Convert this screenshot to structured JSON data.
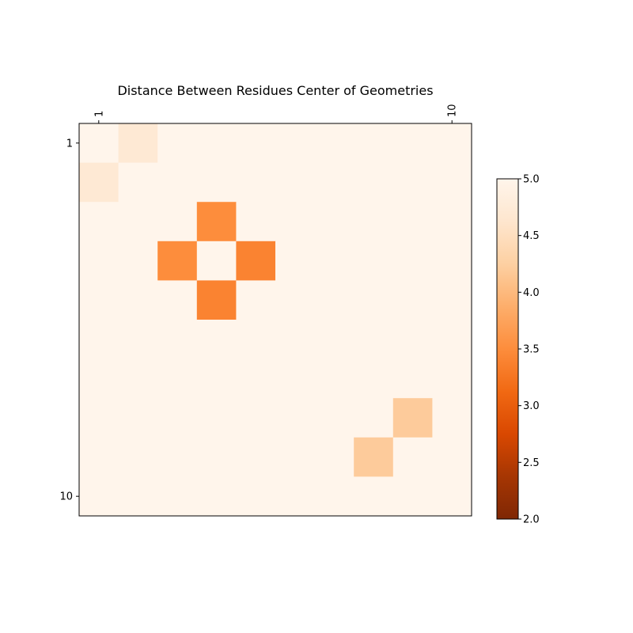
{
  "chart_data": {
    "type": "heatmap",
    "title": "Distance Between Residues Center of Geometries",
    "xlabel": "",
    "ylabel": "",
    "rows": 10,
    "cols": 10,
    "x_ticks": [
      {
        "index": 1,
        "label": "1"
      },
      {
        "index": 10,
        "label": "10"
      }
    ],
    "y_ticks": [
      {
        "index": 1,
        "label": "1"
      },
      {
        "index": 10,
        "label": "10"
      }
    ],
    "x_tick_position": "top",
    "grid": false,
    "colormap": "Oranges (reversed)",
    "color_range": [
      2.0,
      5.0
    ],
    "colorbar": {
      "position": "right",
      "ticks": [
        {
          "value": 2.0,
          "label": "2.0"
        },
        {
          "value": 2.5,
          "label": "2.5"
        },
        {
          "value": 3.0,
          "label": "3.0"
        },
        {
          "value": 3.5,
          "label": "3.5"
        },
        {
          "value": 4.0,
          "label": "4.0"
        },
        {
          "value": 4.5,
          "label": "4.5"
        },
        {
          "value": 5.0,
          "label": "5.0"
        }
      ]
    },
    "values": [
      [
        5.0,
        4.7,
        5.0,
        5.0,
        5.0,
        5.0,
        5.0,
        5.0,
        5.0,
        5.0
      ],
      [
        4.7,
        5.0,
        5.0,
        5.0,
        5.0,
        5.0,
        5.0,
        5.0,
        5.0,
        5.0
      ],
      [
        5.0,
        5.0,
        5.0,
        3.5,
        5.0,
        5.0,
        5.0,
        5.0,
        5.0,
        5.0
      ],
      [
        5.0,
        5.0,
        3.5,
        5.0,
        3.4,
        5.0,
        5.0,
        5.0,
        5.0,
        5.0
      ],
      [
        5.0,
        5.0,
        5.0,
        3.4,
        5.0,
        5.0,
        5.0,
        5.0,
        5.0,
        5.0
      ],
      [
        5.0,
        5.0,
        5.0,
        5.0,
        5.0,
        5.0,
        5.0,
        5.0,
        5.0,
        5.0
      ],
      [
        5.0,
        5.0,
        5.0,
        5.0,
        5.0,
        5.0,
        5.0,
        5.0,
        5.0,
        5.0
      ],
      [
        5.0,
        5.0,
        5.0,
        5.0,
        5.0,
        5.0,
        5.0,
        5.0,
        4.2,
        5.0
      ],
      [
        5.0,
        5.0,
        5.0,
        5.0,
        5.0,
        5.0,
        5.0,
        4.2,
        5.0,
        5.0
      ],
      [
        5.0,
        5.0,
        5.0,
        5.0,
        5.0,
        5.0,
        5.0,
        5.0,
        5.0,
        5.0
      ]
    ]
  }
}
